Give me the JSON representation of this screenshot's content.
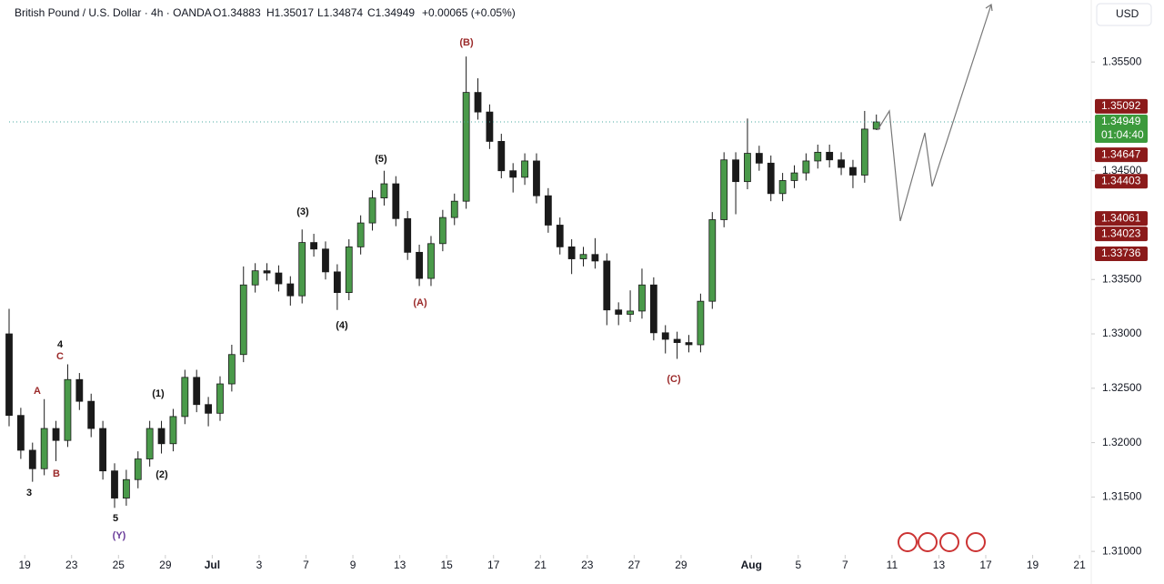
{
  "chart_data": {
    "type": "candlestick",
    "header": {
      "symbol": "British Pound / U.S. Dollar · 4h · OANDA",
      "open": "O1.34883",
      "high": "H1.35017",
      "low": "L1.34874",
      "close": "C1.34949",
      "change": "+0.00065 (+0.05%)"
    },
    "currency": "USD",
    "up_color": "#4a9a4a",
    "down_color": "#1a1a1a",
    "x": [
      0,
      3,
      6,
      9,
      12,
      15,
      18,
      21,
      24,
      27,
      30,
      33,
      36,
      39,
      42,
      45,
      48,
      51,
      54,
      57,
      60,
      63,
      66,
      69,
      72,
      75,
      78,
      81,
      84,
      87,
      90,
      93,
      96,
      99,
      102,
      105,
      108,
      111,
      114,
      117,
      120,
      123,
      126,
      129,
      132,
      135,
      138,
      141,
      144,
      147,
      150,
      153,
      156,
      159,
      162,
      165,
      168,
      171,
      174,
      177,
      180,
      183,
      186,
      189,
      192,
      195,
      198,
      201,
      204,
      207,
      210,
      213,
      216,
      219,
      222
    ],
    "open": [
      1.33,
      1.3225,
      1.3193,
      1.3176,
      1.3213,
      1.3202,
      1.3258,
      1.3238,
      1.3213,
      1.3174,
      1.3149,
      1.3166,
      1.3185,
      1.3213,
      1.3199,
      1.3224,
      1.326,
      1.3235,
      1.3227,
      1.3254,
      1.3281,
      1.3345,
      1.3358,
      1.3356,
      1.3346,
      1.3335,
      1.3384,
      1.3378,
      1.3357,
      1.3338,
      1.338,
      1.3402,
      1.3425,
      1.3438,
      1.3406,
      1.3375,
      1.3351,
      1.3383,
      1.3407,
      1.3422,
      1.3522,
      1.3504,
      1.3477,
      1.345,
      1.3444,
      1.3459,
      1.3427,
      1.34,
      1.338,
      1.3369,
      1.3373,
      1.3367,
      1.3322,
      1.3318,
      1.3321,
      1.3345,
      1.3301,
      1.3295,
      1.3292,
      1.329,
      1.333,
      1.3405,
      1.346,
      1.344,
      1.3466,
      1.3457,
      1.3429,
      1.3441,
      1.3448,
      1.3459,
      1.3467,
      1.346,
      1.3453,
      1.3446,
      1.34883
    ],
    "high": [
      1.3323,
      1.3232,
      1.32,
      1.324,
      1.322,
      1.3272,
      1.3264,
      1.3245,
      1.322,
      1.3181,
      1.3175,
      1.3192,
      1.322,
      1.322,
      1.3231,
      1.3267,
      1.3267,
      1.3242,
      1.3261,
      1.329,
      1.3362,
      1.3365,
      1.3365,
      1.3363,
      1.3353,
      1.3396,
      1.3392,
      1.3385,
      1.3364,
      1.3387,
      1.3409,
      1.3432,
      1.345,
      1.3445,
      1.3413,
      1.3382,
      1.339,
      1.3414,
      1.3429,
      1.3555,
      1.3535,
      1.3511,
      1.3484,
      1.3457,
      1.3466,
      1.3466,
      1.3434,
      1.3407,
      1.3387,
      1.338,
      1.3388,
      1.3374,
      1.3329,
      1.334,
      1.336,
      1.3352,
      1.3308,
      1.3302,
      1.3299,
      1.3337,
      1.3412,
      1.3467,
      1.3467,
      1.3498,
      1.3473,
      1.3464,
      1.3448,
      1.3455,
      1.3466,
      1.3474,
      1.3474,
      1.3467,
      1.346,
      1.3505,
      1.35017
    ],
    "low": [
      1.3215,
      1.3185,
      1.3164,
      1.317,
      1.3183,
      1.3196,
      1.323,
      1.3205,
      1.3166,
      1.314,
      1.3142,
      1.3158,
      1.3178,
      1.319,
      1.3192,
      1.3217,
      1.3228,
      1.3215,
      1.322,
      1.3247,
      1.3274,
      1.3338,
      1.3349,
      1.3339,
      1.3326,
      1.3328,
      1.3371,
      1.335,
      1.3322,
      1.3331,
      1.3373,
      1.3395,
      1.3418,
      1.3399,
      1.3368,
      1.3344,
      1.3344,
      1.3376,
      1.34,
      1.3415,
      1.3497,
      1.347,
      1.3443,
      1.343,
      1.3437,
      1.342,
      1.3393,
      1.3373,
      1.3355,
      1.3362,
      1.336,
      1.3308,
      1.3308,
      1.3311,
      1.3314,
      1.3294,
      1.3282,
      1.3277,
      1.3283,
      1.3283,
      1.3323,
      1.3398,
      1.341,
      1.3433,
      1.345,
      1.3422,
      1.3422,
      1.3434,
      1.3441,
      1.3452,
      1.3453,
      1.3446,
      1.3434,
      1.3439,
      1.34874
    ],
    "close": [
      1.3225,
      1.3193,
      1.3176,
      1.3213,
      1.3202,
      1.3258,
      1.3238,
      1.3213,
      1.3174,
      1.3149,
      1.3166,
      1.3185,
      1.3213,
      1.3199,
      1.3224,
      1.326,
      1.3235,
      1.3227,
      1.3254,
      1.3281,
      1.3345,
      1.3358,
      1.3356,
      1.3346,
      1.3335,
      1.3384,
      1.3378,
      1.3357,
      1.3338,
      1.338,
      1.3402,
      1.3425,
      1.3438,
      1.3406,
      1.3375,
      1.3351,
      1.3383,
      1.3407,
      1.3422,
      1.3522,
      1.3504,
      1.3477,
      1.345,
      1.3444,
      1.3459,
      1.3427,
      1.34,
      1.338,
      1.3369,
      1.3373,
      1.3367,
      1.3322,
      1.3318,
      1.3321,
      1.3345,
      1.3301,
      1.3295,
      1.3292,
      1.329,
      1.333,
      1.3405,
      1.346,
      1.344,
      1.3466,
      1.3457,
      1.3429,
      1.3441,
      1.3448,
      1.3459,
      1.3467,
      1.346,
      1.3453,
      1.3446,
      1.34883,
      1.34949
    ],
    "xlim": [
      0,
      277
    ],
    "xticks": [
      {
        "value": 4,
        "label": "19"
      },
      {
        "value": 16,
        "label": "23"
      },
      {
        "value": 28,
        "label": "25"
      },
      {
        "value": 40,
        "label": "29"
      },
      {
        "value": 52,
        "label": "Jul"
      },
      {
        "value": 64,
        "label": "3"
      },
      {
        "value": 76,
        "label": "7"
      },
      {
        "value": 88,
        "label": "9"
      },
      {
        "value": 100,
        "label": "13"
      },
      {
        "value": 112,
        "label": "15"
      },
      {
        "value": 124,
        "label": "17"
      },
      {
        "value": 136,
        "label": "21"
      },
      {
        "value": 148,
        "label": "23"
      },
      {
        "value": 160,
        "label": "27"
      },
      {
        "value": 172,
        "label": "29"
      },
      {
        "value": 190,
        "label": "Aug"
      },
      {
        "value": 202,
        "label": "5"
      },
      {
        "value": 214,
        "label": "7"
      },
      {
        "value": 226,
        "label": "11"
      },
      {
        "value": 238,
        "label": "13"
      },
      {
        "value": 250,
        "label": "17"
      },
      {
        "value": 262,
        "label": "19"
      },
      {
        "value": 274,
        "label": "21"
      }
    ],
    "ylim": [
      1.307,
      1.3607
    ],
    "yticks": [
      {
        "value": 1.355,
        "label": "1.35500"
      },
      {
        "value": 1.345,
        "label": "1.34500"
      },
      {
        "value": 1.335,
        "label": "1.33500"
      },
      {
        "value": 1.33,
        "label": "1.33000"
      },
      {
        "value": 1.325,
        "label": "1.32500"
      },
      {
        "value": 1.32,
        "label": "1.32000"
      },
      {
        "value": 1.315,
        "label": "1.31500"
      },
      {
        "value": 1.31,
        "label": "1.31000"
      }
    ],
    "price_tags": [
      {
        "value": 1.35092,
        "color": "#8b1a1a"
      },
      {
        "value": 1.34949,
        "color": "#3c9a3c",
        "countdown": "01:04:40"
      },
      {
        "value": 1.34647,
        "color": "#8b1a1a"
      },
      {
        "value": 1.34403,
        "color": "#8b1a1a"
      },
      {
        "value": 1.34061,
        "color": "#8b1a1a"
      },
      {
        "value": 1.34023,
        "color": "#8b1a1a"
      },
      {
        "value": 1.33736,
        "color": "#8b1a1a"
      }
    ],
    "wave_labels": [
      {
        "text": "3",
        "color": "#111111"
      },
      {
        "text": "A",
        "color": "#9b2a2a"
      },
      {
        "text": "B",
        "color": "#9b2a2a"
      },
      {
        "text": "4",
        "color": "#111111"
      },
      {
        "text": "C",
        "color": "#9b2a2a"
      },
      {
        "text": "5",
        "color": "#111111"
      },
      {
        "text": "(Y)",
        "color": "#6a3d9a"
      },
      {
        "text": "(1)",
        "color": "#111111"
      },
      {
        "text": "(2)",
        "color": "#111111"
      },
      {
        "text": "(3)",
        "color": "#111111"
      },
      {
        "text": "(4)",
        "color": "#111111"
      },
      {
        "text": "(5)",
        "color": "#111111"
      },
      {
        "text": "(A)",
        "color": "#9b2a2a"
      },
      {
        "text": "(B)",
        "color": "#9b2a2a"
      },
      {
        "text": "(C)",
        "color": "#9b2a2a"
      }
    ]
  }
}
